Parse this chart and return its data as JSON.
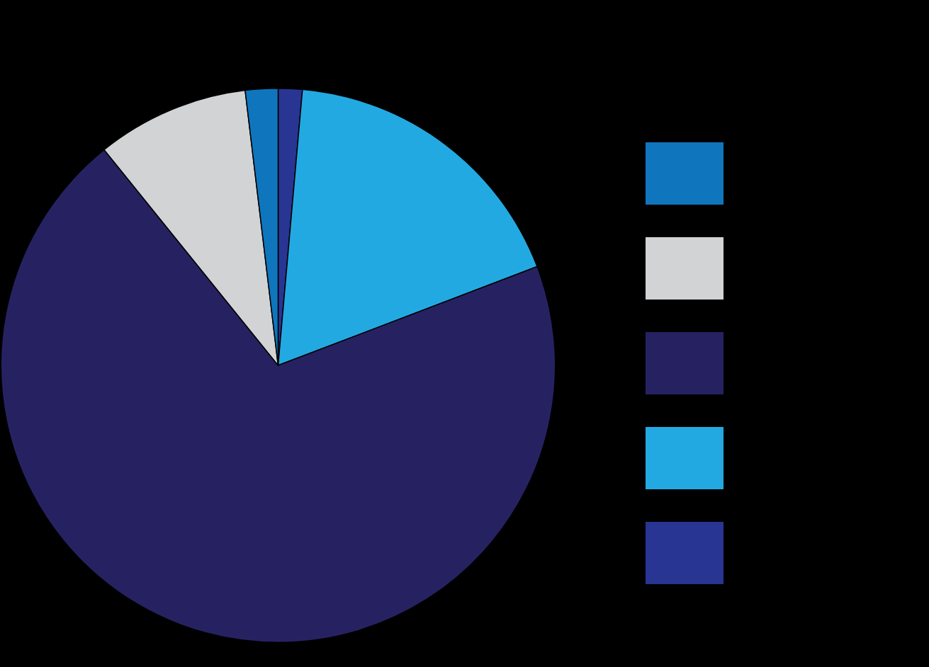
{
  "chart_data": {
    "type": "pie",
    "categories": [
      null,
      null,
      null,
      null,
      null
    ],
    "values": [
      1.4,
      17.8,
      70.0,
      8.9,
      1.9
    ],
    "colors": [
      "#283593",
      "#23a9e1",
      "#262262",
      "#d1d3d4",
      "#0f75bc"
    ]
  }
}
